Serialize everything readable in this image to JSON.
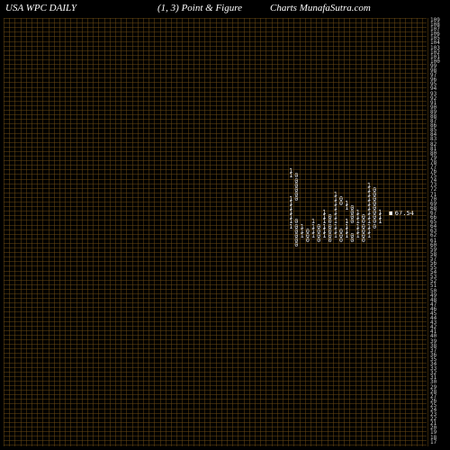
{
  "header": {
    "left": "USA WPC DAILY",
    "mid": "(1,  3) Point & Figure",
    "right": "Charts MunafaSutra.com"
  },
  "chart": {
    "type": "point-and-figure",
    "background_color": "#000000",
    "grid_color": "rgba(110, 75, 20, 0.5)",
    "text_color": "#ffffff",
    "axis_text_color": "#cccccc",
    "cell_width": 6.2,
    "cell_height": 5.1,
    "grid_cols": 76,
    "grid_rows": 93,
    "y_axis": {
      "start": 109,
      "end": 17,
      "step": -1
    },
    "price_marker": {
      "value": "67.54",
      "col": 69,
      "row": 42
    },
    "columns": [
      {
        "col": 51,
        "symbol": "1",
        "rows": [
          33,
          34,
          39,
          40,
          41,
          42,
          43,
          44,
          45
        ]
      },
      {
        "col": 52,
        "symbol": "0",
        "rows": [
          34,
          35,
          36,
          37,
          38,
          39,
          44,
          45,
          46,
          47,
          48,
          49
        ]
      },
      {
        "col": 53,
        "symbol": "1",
        "rows": [
          45,
          46,
          47
        ]
      },
      {
        "col": 54,
        "symbol": "0",
        "rows": [
          46,
          47,
          48
        ]
      },
      {
        "col": 55,
        "symbol": "1",
        "rows": [
          44,
          45,
          46,
          47
        ]
      },
      {
        "col": 56,
        "symbol": "0",
        "rows": [
          45,
          46,
          47,
          48
        ]
      },
      {
        "col": 57,
        "symbol": "1",
        "rows": [
          42,
          43,
          44,
          45,
          46,
          47
        ]
      },
      {
        "col": 58,
        "symbol": "0",
        "rows": [
          43,
          44,
          45,
          46,
          47,
          48
        ]
      },
      {
        "col": 59,
        "symbol": "1",
        "rows": [
          38,
          39,
          40,
          41,
          42,
          43,
          44,
          45,
          46,
          47
        ]
      },
      {
        "col": 60,
        "symbol": "0",
        "rows": [
          39,
          40,
          46,
          47,
          48
        ]
      },
      {
        "col": 61,
        "symbol": "1",
        "rows": [
          40,
          41,
          44,
          45,
          46,
          47
        ]
      },
      {
        "col": 62,
        "symbol": "0",
        "rows": [
          41,
          42,
          43,
          44,
          47,
          48
        ]
      },
      {
        "col": 63,
        "symbol": "1",
        "rows": [
          42,
          43,
          44,
          45,
          46,
          47
        ]
      },
      {
        "col": 64,
        "symbol": "0",
        "rows": [
          43,
          44,
          45,
          46,
          47,
          48
        ]
      },
      {
        "col": 65,
        "symbol": "1",
        "rows": [
          36,
          37,
          38,
          39,
          40,
          41,
          42,
          43,
          44,
          45,
          46,
          47
        ]
      },
      {
        "col": 66,
        "symbol": "0",
        "rows": [
          37,
          38,
          39,
          40,
          41,
          42,
          43,
          44,
          45
        ]
      },
      {
        "col": 67,
        "symbol": "1",
        "rows": [
          42,
          43,
          44
        ]
      }
    ]
  }
}
